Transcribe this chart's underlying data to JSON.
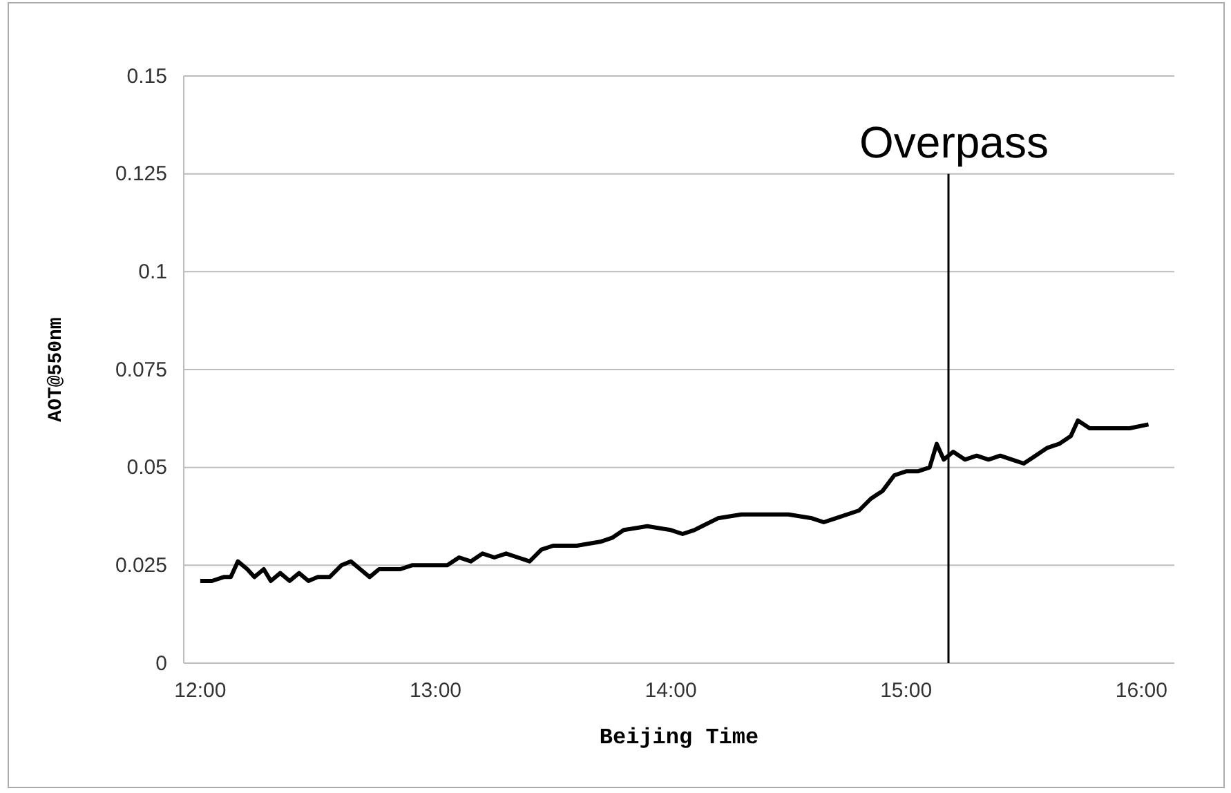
{
  "chart_data": {
    "type": "line",
    "xlabel": "Beijing Time",
    "ylabel": "AOT@550nm",
    "xlim": [
      11.93,
      16.14
    ],
    "ylim": [
      0,
      0.15
    ],
    "xticks": [
      {
        "value": 12,
        "label": "12:00"
      },
      {
        "value": 13,
        "label": "13:00"
      },
      {
        "value": 14,
        "label": "14:00"
      },
      {
        "value": 15,
        "label": "15:00"
      },
      {
        "value": 16,
        "label": "16:00"
      }
    ],
    "yticks": [
      {
        "value": 0,
        "label": "0"
      },
      0.025,
      0.05,
      0.075,
      0.1,
      0.125,
      0.15
    ],
    "grid": "y",
    "line_style": "solid",
    "marker": "none",
    "ref_lines": [
      {
        "axis": "x",
        "value": 15.18,
        "label": "Overpass",
        "color": "#000000"
      }
    ],
    "series": [
      {
        "color": "#000000",
        "x": [
          12,
          12.05,
          12.1,
          12.13,
          12.16,
          12.2,
          12.23,
          12.27,
          12.3,
          12.34,
          12.38,
          12.42,
          12.46,
          12.5,
          12.55,
          12.6,
          12.64,
          12.68,
          12.72,
          12.76,
          12.8,
          12.85,
          12.9,
          12.95,
          13,
          13.05,
          13.1,
          13.15,
          13.2,
          13.25,
          13.3,
          13.35,
          13.4,
          13.45,
          13.5,
          13.6,
          13.7,
          13.75,
          13.8,
          13.9,
          14,
          14.05,
          14.1,
          14.2,
          14.3,
          14.4,
          14.5,
          14.6,
          14.65,
          14.7,
          14.8,
          14.85,
          14.9,
          14.95,
          15,
          15.05,
          15.1,
          15.13,
          15.16,
          15.2,
          15.25,
          15.3,
          15.35,
          15.4,
          15.45,
          15.5,
          15.55,
          15.6,
          15.65,
          15.7,
          15.73,
          15.78,
          15.85,
          15.9,
          15.95,
          16.03
        ],
        "values": [
          0.021,
          0.021,
          0.022,
          0.022,
          0.026,
          0.024,
          0.022,
          0.024,
          0.021,
          0.023,
          0.021,
          0.023,
          0.021,
          0.022,
          0.022,
          0.025,
          0.026,
          0.024,
          0.022,
          0.024,
          0.024,
          0.024,
          0.025,
          0.025,
          0.025,
          0.025,
          0.027,
          0.026,
          0.028,
          0.027,
          0.028,
          0.027,
          0.026,
          0.029,
          0.03,
          0.03,
          0.031,
          0.032,
          0.034,
          0.035,
          0.034,
          0.033,
          0.034,
          0.037,
          0.038,
          0.038,
          0.038,
          0.037,
          0.036,
          0.037,
          0.039,
          0.042,
          0.044,
          0.048,
          0.049,
          0.049,
          0.05,
          0.056,
          0.052,
          0.054,
          0.052,
          0.053,
          0.052,
          0.053,
          0.052,
          0.051,
          0.053,
          0.055,
          0.056,
          0.058,
          0.062,
          0.06,
          0.06,
          0.06,
          0.06,
          0.061
        ]
      }
    ]
  }
}
